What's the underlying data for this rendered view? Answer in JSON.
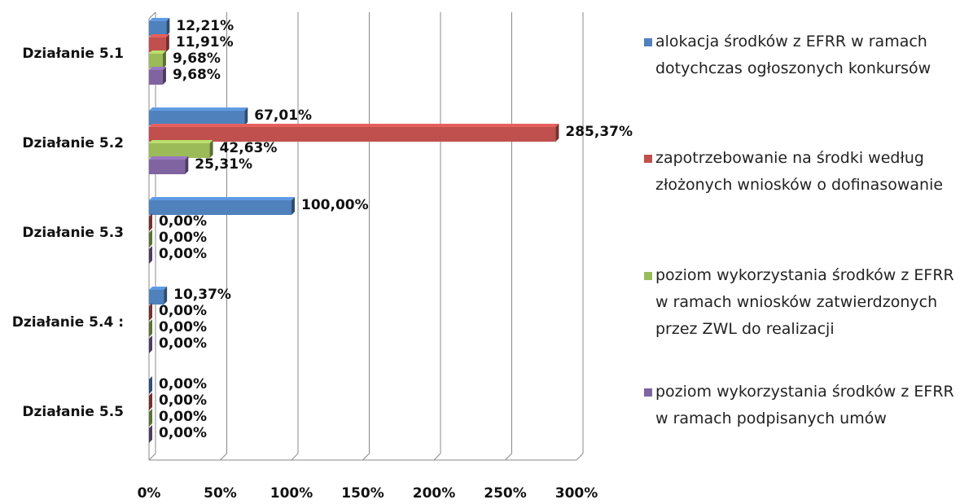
{
  "chart_data": {
    "type": "bar",
    "orientation": "horizontal",
    "categories": [
      "Działanie 5.1",
      "Działanie 5.2",
      "Działanie 5.3",
      "Działanie 5.4 :",
      "Działanie 5.5"
    ],
    "series": [
      {
        "name": "alokacja środków z EFRR w ramach dotychczas ogłoszonych konkursów",
        "color": "#4f81bd",
        "values": [
          12.21,
          67.01,
          100,
          10.37,
          0
        ],
        "value_labels": [
          "12,21%",
          "67,01%",
          "100,00%",
          "10,37%",
          "0,00%"
        ]
      },
      {
        "name": "zapotrzebowanie na środki według złożonych wniosków o dofinasowanie",
        "color": "#c0504d",
        "values": [
          11.91,
          285.37,
          0,
          0,
          0
        ],
        "value_labels": [
          "11,91%",
          "285,37%",
          "0,00%",
          "0,00%",
          "0,00%"
        ]
      },
      {
        "name": "poziom wykorzystania środków z EFRR w ramach wniosków zatwierdzonych przez ZWL do realizacji",
        "color": "#9bbb59",
        "values": [
          9.68,
          42.63,
          0,
          0,
          0
        ],
        "value_labels": [
          "9,68%",
          "42,63%",
          "0,00%",
          "0,00%",
          "0,00%"
        ]
      },
      {
        "name": "poziom wykorzystania środków z EFRR w ramach podpisanych umów",
        "color": "#8064a2",
        "values": [
          9.68,
          25.31,
          0,
          0,
          0
        ],
        "value_labels": [
          "9,68%",
          "25,31%",
          "0,00%",
          "0,00%",
          "0,00%"
        ]
      }
    ],
    "xlim": [
      0,
      300
    ],
    "xticks": [
      {
        "value": 0,
        "label": "0%"
      },
      {
        "value": 50,
        "label": "50%"
      },
      {
        "value": 100,
        "label": "100%"
      },
      {
        "value": 150,
        "label": "150%"
      },
      {
        "value": 200,
        "label": "200%"
      },
      {
        "value": 250,
        "label": "250%"
      },
      {
        "value": 300,
        "label": "300%"
      }
    ],
    "grid": true,
    "legend": "right"
  }
}
